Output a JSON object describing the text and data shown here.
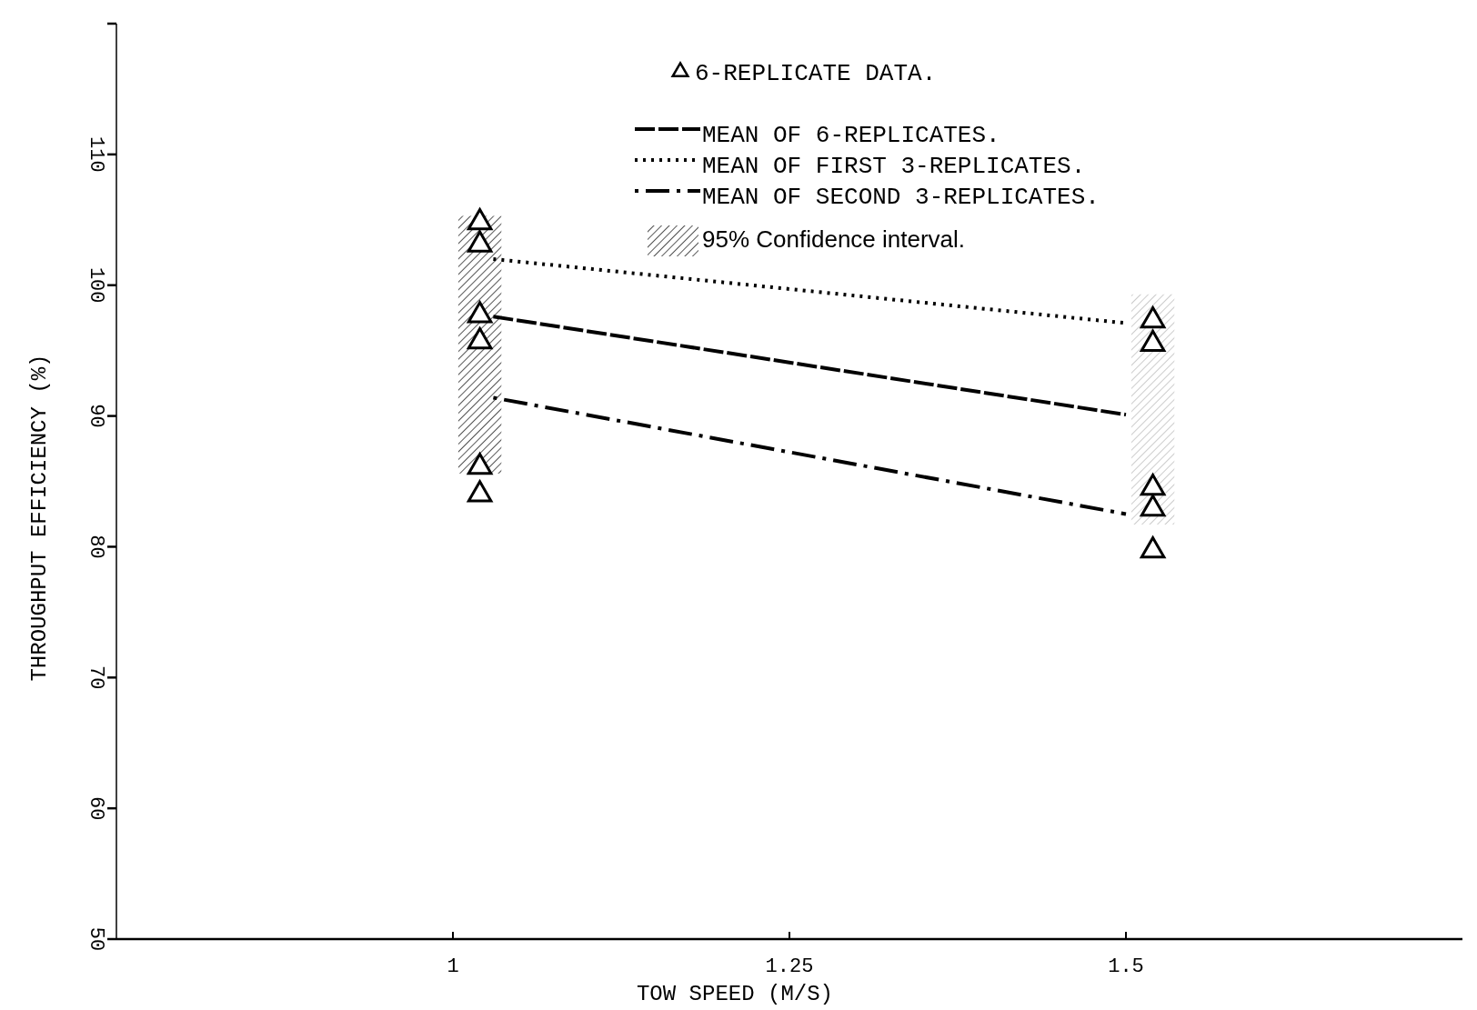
{
  "chart_data": {
    "type": "line",
    "xlabel": "TOW SPEED (M/S)",
    "ylabel": "THROUGHPUT EFFICIENCY (%)",
    "xlim": [
      0.75,
      1.75
    ],
    "xticks": [
      1,
      1.25,
      1.5
    ],
    "ylim": [
      50,
      120
    ],
    "yticks": [
      50,
      60,
      70,
      80,
      90,
      100,
      110,
      {
        "value": 120,
        "label": null
      }
    ],
    "grid": false,
    "legend": "top",
    "series": [
      {
        "name": "95% Confidence interval.",
        "type": "bar",
        "x": [
          1.02,
          1.52
        ],
        "base": [
          85.6,
          81.7
        ],
        "values": [
          19.7,
          17.6
        ],
        "colors": [
          "#555555",
          "#cccccc"
        ]
      },
      {
        "name": "6-REPLICATE DATA.",
        "type": "scatter",
        "marker": "triangle",
        "color": "#000000",
        "x": [
          1.02,
          1.02,
          1.02,
          1.02,
          1.02,
          1.02,
          1.52,
          1.52,
          1.52,
          1.52,
          1.52
        ],
        "values": [
          104.8,
          103.1,
          97.7,
          95.7,
          86.1,
          84.0,
          97.3,
          95.5,
          84.5,
          82.9,
          79.7
        ]
      },
      {
        "name": "MEAN OF 6-REPLICATES.",
        "line_style": "dashed",
        "color": "#000000",
        "x": [
          1.03,
          1.5
        ],
        "values": [
          97.6,
          90.1
        ]
      },
      {
        "name": "MEAN OF FIRST 3-REPLICATES.",
        "line_style": "dotted",
        "color": "#000000",
        "x": [
          1.03,
          1.5
        ],
        "values": [
          102.0,
          97.1
        ]
      },
      {
        "name": "MEAN OF SECOND 3-REPLICATES.",
        "line_style": "dashdot",
        "color": "#000000",
        "x": [
          1.03,
          1.5
        ],
        "values": [
          91.4,
          82.5
        ]
      }
    ]
  }
}
